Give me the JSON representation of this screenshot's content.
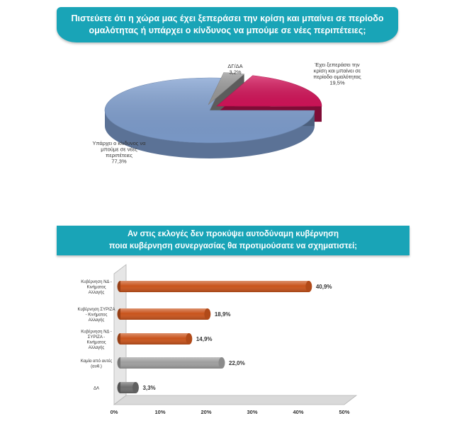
{
  "pie_title": {
    "line1": "Πιστεύετε ότι η χώρα μας έχει ξεπεράσει την κρίση και μπαίνει σε περίοδο",
    "line2": "ομαλότητας ή υπάρχει ο κίνδυνος να μπούμε σε νέες περιπέτειες;"
  },
  "bar_title": {
    "line1": "Αν στις εκλογές δεν προκύψει αυτοδύναμη κυβέρνηση",
    "line2": "ποια κυβέρνηση συνεργασίας θα προτιμούσατε να σχηματιστεί;"
  },
  "chart_data": [
    {
      "type": "pie",
      "slices": [
        {
          "label_lines": [
            "Έχει ξεπεράσει την",
            "κρίση και μπαίνει σε",
            "περίοδο ομαλότητας"
          ],
          "value": 19.5,
          "value_text": "19,5%",
          "color": "#d4145a"
        },
        {
          "label_lines": [
            "Υπάρχει ο κίνδυνος να",
            "μπούμε σε νέες",
            "περιπέτειες"
          ],
          "value": 77.3,
          "value_text": "77,3%",
          "color": "#7f9fd0"
        },
        {
          "label_lines": [
            "ΔΓ/ΔΑ"
          ],
          "value": 3.2,
          "value_text": "3,2%",
          "color": "#9a9a9a"
        }
      ]
    },
    {
      "type": "bar",
      "orientation": "horizontal",
      "categories": [
        [
          "Κυβέρνηση ΝΔ -",
          "Κινήματος",
          "Αλλαγής"
        ],
        [
          "Κυβέρνηση ΣΥΡΙΖΑ",
          "- Κινήματος",
          "Αλλαγής"
        ],
        [
          "Κυβέρνηση ΝΔ -",
          "ΣΥΡΙΖΑ -",
          "Κινήματος",
          "Αλλαγής"
        ],
        [
          "Καμία από αυτές",
          "(αυθ.)"
        ],
        [
          "ΔΑ"
        ]
      ],
      "values": [
        40.9,
        18.9,
        14.9,
        22.0,
        3.3
      ],
      "value_labels": [
        "40,9%",
        "18,9%",
        "14,9%",
        "22,0%",
        "3,3%"
      ],
      "colors": [
        "#c9541c",
        "#c9541c",
        "#c9541c",
        "#9e9e9e",
        "#6e6e6e"
      ],
      "xlim": [
        0,
        50
      ],
      "xticks": [
        "0%",
        "10%",
        "20%",
        "30%",
        "40%",
        "50%"
      ]
    }
  ]
}
